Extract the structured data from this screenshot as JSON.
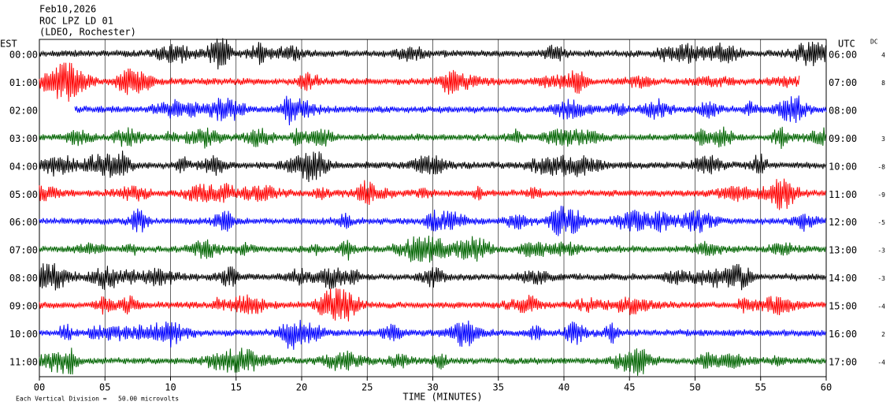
{
  "chart_data": {
    "type": "helicorder",
    "title": "Feb10,2026",
    "subtitle": "ROC LPZ LD 01",
    "source": "(LDEO, Rochester)",
    "left_label": "EST",
    "right_label": "UTC",
    "dc_label": "DC",
    "xlabel": "TIME (MINUTES)",
    "footnote": "Each Vertical Division =   50.00 microvolts",
    "xlim": [
      0,
      60
    ],
    "xticks": [
      {
        "value": 0,
        "label": "00"
      },
      {
        "value": 5,
        "label": "05"
      },
      10,
      15,
      20,
      25,
      30,
      35,
      40,
      45,
      50,
      55,
      60
    ],
    "grid": true,
    "rows": [
      {
        "est": "00:00",
        "utc": "06:00",
        "dc": 4,
        "color": "#000000",
        "span": [
          0,
          60
        ]
      },
      {
        "est": "01:00",
        "utc": "07:00",
        "dc": 8,
        "color": "#ff0000",
        "span": [
          0,
          58
        ]
      },
      {
        "est": "02:00",
        "utc": "08:00",
        "dc": null,
        "color": "#0000ff",
        "span": [
          2.7,
          60
        ]
      },
      {
        "est": "03:00",
        "utc": "09:00",
        "dc": 3,
        "color": "#006400",
        "span": [
          0,
          60
        ]
      },
      {
        "est": "04:00",
        "utc": "10:00",
        "dc": -8,
        "color": "#000000",
        "span": [
          0,
          60
        ]
      },
      {
        "est": "05:00",
        "utc": "11:00",
        "dc": -9,
        "color": "#ff0000",
        "span": [
          0,
          60
        ]
      },
      {
        "est": "06:00",
        "utc": "12:00",
        "dc": -5,
        "color": "#0000ff",
        "span": [
          0,
          60
        ]
      },
      {
        "est": "07:00",
        "utc": "13:00",
        "dc": -3,
        "color": "#006400",
        "span": [
          0,
          60
        ]
      },
      {
        "est": "08:00",
        "utc": "14:00",
        "dc": -3,
        "color": "#000000",
        "span": [
          0,
          60
        ]
      },
      {
        "est": "09:00",
        "utc": "15:00",
        "dc": -4,
        "color": "#ff0000",
        "span": [
          0,
          60
        ]
      },
      {
        "est": "10:00",
        "utc": "16:00",
        "dc": 2,
        "color": "#0000ff",
        "span": [
          0,
          60
        ]
      },
      {
        "est": "11:00",
        "utc": "17:00",
        "dc": -4,
        "color": "#006400",
        "span": [
          0,
          60
        ]
      }
    ]
  }
}
